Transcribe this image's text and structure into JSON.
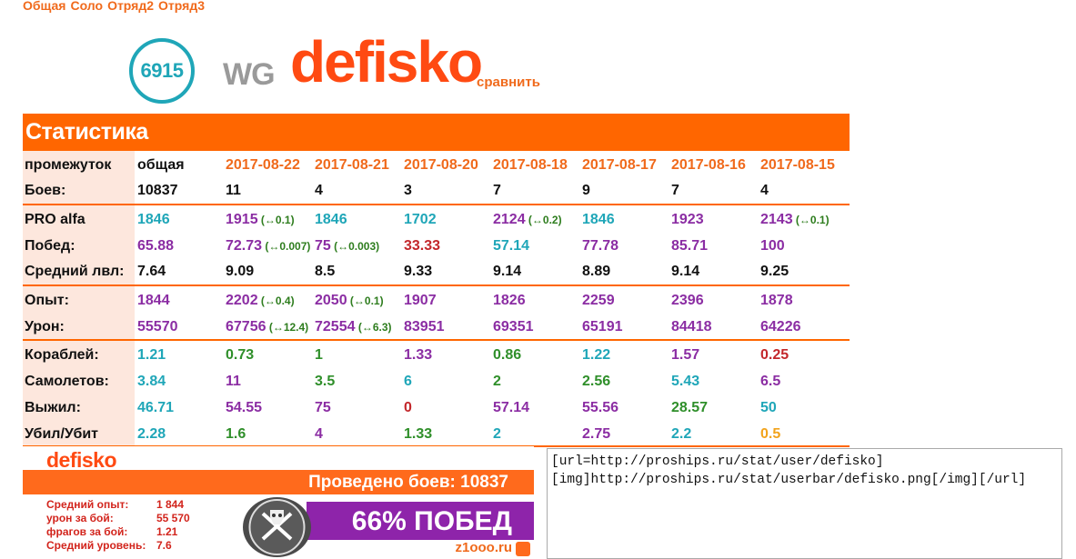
{
  "tabs": [
    "Общая",
    "Соло",
    "Отряд2",
    "Отряд3"
  ],
  "profile": {
    "rating": "6915",
    "clan": "WG",
    "username": "defisko",
    "compare_label": "сравнить"
  },
  "section_title": "Статистика",
  "dates": [
    "2017-08-22",
    "2017-08-21",
    "2017-08-20",
    "2017-08-18",
    "2017-08-17",
    "2017-08-16",
    "2017-08-15"
  ],
  "rows": [
    {
      "label": "промежуток",
      "cells": [
        {
          "v": "общая",
          "c": "black"
        }
      ]
    },
    {
      "label": "Боев:",
      "cells": [
        {
          "v": "10837",
          "c": "black"
        },
        {
          "v": "11",
          "c": "black"
        },
        {
          "v": "4",
          "c": "black"
        },
        {
          "v": "3",
          "c": "black"
        },
        {
          "v": "7",
          "c": "black"
        },
        {
          "v": "9",
          "c": "black"
        },
        {
          "v": "7",
          "c": "black"
        },
        {
          "v": "4",
          "c": "black"
        }
      ]
    },
    {
      "label": "PRO alfa",
      "cells": [
        {
          "v": "1846",
          "c": "teal"
        },
        {
          "v": "1915",
          "c": "purple",
          "d": "(↔0.1)"
        },
        {
          "v": "1846",
          "c": "teal"
        },
        {
          "v": "1702",
          "c": "teal"
        },
        {
          "v": "2124",
          "c": "purple",
          "d": "(↔0.2)"
        },
        {
          "v": "1846",
          "c": "teal"
        },
        {
          "v": "1923",
          "c": "purple"
        },
        {
          "v": "2143",
          "c": "purple",
          "d": "(↔0.1)"
        }
      ]
    },
    {
      "label": "Побед:",
      "cells": [
        {
          "v": "65.88",
          "c": "purple"
        },
        {
          "v": "72.73",
          "c": "purple",
          "d": "(↔0.007)"
        },
        {
          "v": "75",
          "c": "purple",
          "d": "(↔0.003)"
        },
        {
          "v": "33.33",
          "c": "red"
        },
        {
          "v": "57.14",
          "c": "teal"
        },
        {
          "v": "77.78",
          "c": "purple"
        },
        {
          "v": "85.71",
          "c": "purple"
        },
        {
          "v": "100",
          "c": "purple"
        }
      ]
    },
    {
      "label": "Средний лвл:",
      "cells": [
        {
          "v": "7.64",
          "c": "black"
        },
        {
          "v": "9.09",
          "c": "black"
        },
        {
          "v": "8.5",
          "c": "black"
        },
        {
          "v": "9.33",
          "c": "black"
        },
        {
          "v": "9.14",
          "c": "black"
        },
        {
          "v": "8.89",
          "c": "black"
        },
        {
          "v": "9.14",
          "c": "black"
        },
        {
          "v": "9.25",
          "c": "black"
        }
      ]
    },
    {
      "label": "Опыт:",
      "cells": [
        {
          "v": "1844",
          "c": "purple"
        },
        {
          "v": "2202",
          "c": "purple",
          "d": "(↔0.4)"
        },
        {
          "v": "2050",
          "c": "purple",
          "d": "(↔0.1)"
        },
        {
          "v": "1907",
          "c": "purple"
        },
        {
          "v": "1826",
          "c": "purple"
        },
        {
          "v": "2259",
          "c": "purple"
        },
        {
          "v": "2396",
          "c": "purple"
        },
        {
          "v": "1878",
          "c": "purple"
        }
      ]
    },
    {
      "label": "Урон:",
      "cells": [
        {
          "v": "55570",
          "c": "purple"
        },
        {
          "v": "67756",
          "c": "purple",
          "d": "(↔12.4)"
        },
        {
          "v": "72554",
          "c": "purple",
          "d": "(↔6.3)"
        },
        {
          "v": "83951",
          "c": "purple"
        },
        {
          "v": "69351",
          "c": "purple"
        },
        {
          "v": "65191",
          "c": "purple"
        },
        {
          "v": "84418",
          "c": "purple"
        },
        {
          "v": "64226",
          "c": "purple"
        }
      ]
    },
    {
      "label": "Кораблей:",
      "cells": [
        {
          "v": "1.21",
          "c": "teal"
        },
        {
          "v": "0.73",
          "c": "green"
        },
        {
          "v": "1",
          "c": "green"
        },
        {
          "v": "1.33",
          "c": "purple"
        },
        {
          "v": "0.86",
          "c": "green"
        },
        {
          "v": "1.22",
          "c": "teal"
        },
        {
          "v": "1.57",
          "c": "purple"
        },
        {
          "v": "0.25",
          "c": "red"
        }
      ]
    },
    {
      "label": "Самолетов:",
      "cells": [
        {
          "v": "3.84",
          "c": "teal"
        },
        {
          "v": "11",
          "c": "purple"
        },
        {
          "v": "3.5",
          "c": "green"
        },
        {
          "v": "6",
          "c": "teal"
        },
        {
          "v": "2",
          "c": "green"
        },
        {
          "v": "2.56",
          "c": "green"
        },
        {
          "v": "5.43",
          "c": "teal"
        },
        {
          "v": "6.5",
          "c": "purple"
        }
      ]
    },
    {
      "label": "Выжил:",
      "cells": [
        {
          "v": "46.71",
          "c": "teal"
        },
        {
          "v": "54.55",
          "c": "purple"
        },
        {
          "v": "75",
          "c": "purple"
        },
        {
          "v": "0",
          "c": "red"
        },
        {
          "v": "57.14",
          "c": "purple"
        },
        {
          "v": "55.56",
          "c": "purple"
        },
        {
          "v": "28.57",
          "c": "green"
        },
        {
          "v": "50",
          "c": "teal"
        }
      ]
    },
    {
      "label": "Убил/Убит",
      "cells": [
        {
          "v": "2.28",
          "c": "teal"
        },
        {
          "v": "1.6",
          "c": "green"
        },
        {
          "v": "4",
          "c": "purple"
        },
        {
          "v": "1.33",
          "c": "green"
        },
        {
          "v": "2",
          "c": "teal"
        },
        {
          "v": "2.75",
          "c": "purple"
        },
        {
          "v": "2.2",
          "c": "teal"
        },
        {
          "v": "0.5",
          "c": "yellow"
        }
      ]
    }
  ],
  "userbar": {
    "name": "defisko",
    "battles": "Проведено боев: 10837",
    "stats": [
      {
        "k": "Средний опыт:",
        "v": "1 844"
      },
      {
        "k": "урон за бой:",
        "v": "55 570"
      },
      {
        "k": "фрагов за бой:",
        "v": "1.21"
      },
      {
        "k": "Средний уровень:",
        "v": "7.6"
      }
    ],
    "winrate": "66% ПОБЕД",
    "site": "z1ooo.ru"
  },
  "bbcode": "[url=http://proships.ru/stat/user/defisko]\n[img]http://proships.ru/stat/userbar/defisko.png[/img][/url]"
}
